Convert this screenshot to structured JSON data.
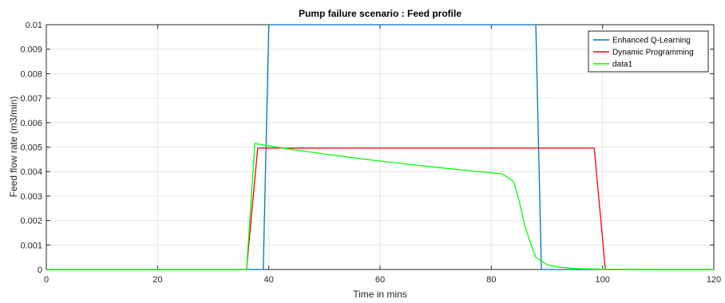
{
  "chart_data": {
    "type": "line",
    "title": "Pump failure scenario : Feed profile",
    "xlabel": "Time in mins",
    "ylabel": "Feed flow rate (m3/min)",
    "xlim": [
      0,
      120
    ],
    "ylim": [
      0,
      0.01
    ],
    "xticks": [
      0,
      20,
      40,
      60,
      80,
      100,
      120
    ],
    "xtick_labels": [
      "0",
      "20",
      "40",
      "60",
      "80",
      "100",
      "120"
    ],
    "yticks": [
      0,
      0.001,
      0.002,
      0.003,
      0.004,
      0.005,
      0.006,
      0.007,
      0.008,
      0.009,
      0.01
    ],
    "ytick_labels": [
      "0",
      "0.001",
      "0.002",
      "0.003",
      "0.004",
      "0.005",
      "0.006",
      "0.007",
      "0.008",
      "0.009",
      "0.01"
    ],
    "grid": true,
    "legend_position": "top-right",
    "series": [
      {
        "name": "Enhanced Q-Learning",
        "color": "#0072BD",
        "x": [
          0,
          39,
          40,
          88,
          89,
          120
        ],
        "y": [
          0,
          0,
          0.01,
          0.01,
          0,
          0
        ]
      },
      {
        "name": "Dynamic Programming",
        "color": "#ff0000",
        "x": [
          0,
          36,
          38,
          98.5,
          100.5,
          120
        ],
        "y": [
          0,
          0,
          0.00496,
          0.00496,
          0,
          0
        ]
      },
      {
        "name": "data1",
        "color": "#00ff00",
        "x": [
          0,
          36,
          37.5,
          40,
          45,
          50,
          55,
          60,
          65,
          70,
          75,
          80,
          82,
          84,
          85,
          86,
          87,
          88,
          89,
          90,
          92,
          95,
          100,
          110,
          120
        ],
        "y": [
          0,
          0,
          0.00515,
          0.00505,
          0.00488,
          0.00472,
          0.00457,
          0.00443,
          0.0043,
          0.00418,
          0.00406,
          0.00395,
          0.0039,
          0.0036,
          0.0028,
          0.0018,
          0.0011,
          0.0005,
          0.00035,
          0.0002,
          0.0001,
          4e-05,
          1e-05,
          0,
          0
        ]
      }
    ]
  }
}
